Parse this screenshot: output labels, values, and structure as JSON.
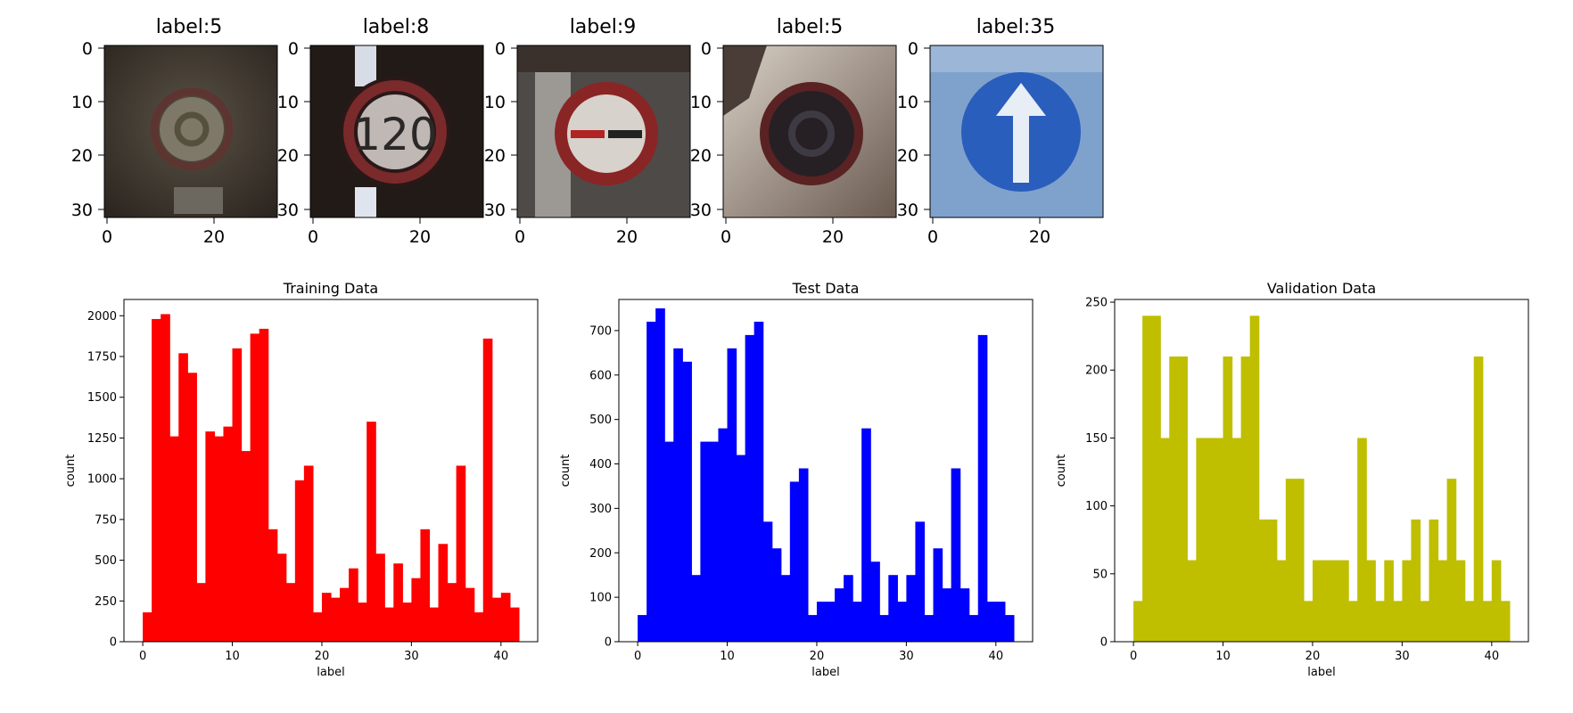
{
  "images": [
    {
      "title": "label:5",
      "icon": "speed-limit-sign-image",
      "xticks": [
        "0",
        "20"
      ],
      "yticks": [
        "0",
        "10",
        "20",
        "30"
      ]
    },
    {
      "title": "label:8",
      "icon": "speed-limit-120-sign-image",
      "sign_text": "120",
      "xticks": [
        "0",
        "20"
      ],
      "yticks": [
        "0",
        "10",
        "20",
        "30"
      ]
    },
    {
      "title": "label:9",
      "icon": "no-passing-sign-image",
      "xticks": [
        "0",
        "20"
      ],
      "yticks": [
        "0",
        "10",
        "20",
        "30"
      ]
    },
    {
      "title": "label:5",
      "icon": "speed-limit-sign-image",
      "xticks": [
        "0",
        "20"
      ],
      "yticks": [
        "0",
        "10",
        "20",
        "30"
      ]
    },
    {
      "title": "label:35",
      "icon": "ahead-only-sign-image",
      "xticks": [
        "0",
        "20"
      ],
      "yticks": [
        "0",
        "10",
        "20",
        "30"
      ]
    }
  ],
  "chart_data": [
    {
      "type": "bar",
      "title": "Training Data",
      "xlabel": "label",
      "ylabel": "count",
      "color": "#ff0000",
      "xlim": [
        -2.1,
        44.1
      ],
      "ylim": [
        0,
        2100
      ],
      "xticks": [
        0,
        10,
        20,
        30,
        40
      ],
      "yticks": [
        0,
        250,
        500,
        750,
        1000,
        1250,
        1500,
        1750,
        2000
      ],
      "bin_width": 1.0,
      "x": [
        0,
        1,
        2,
        3,
        4,
        5,
        6,
        7,
        8,
        9,
        10,
        11,
        12,
        13,
        14,
        15,
        16,
        17,
        18,
        19,
        20,
        21,
        22,
        23,
        24,
        25,
        26,
        27,
        28,
        29,
        30,
        31,
        32,
        33,
        34,
        35,
        36,
        37,
        38,
        39,
        40,
        41
      ],
      "values": [
        180,
        1980,
        2010,
        1260,
        1770,
        1650,
        360,
        1290,
        1260,
        1320,
        1800,
        1170,
        1890,
        1920,
        690,
        540,
        360,
        990,
        1080,
        180,
        300,
        270,
        330,
        450,
        240,
        1350,
        540,
        210,
        480,
        240,
        390,
        690,
        210,
        600,
        360,
        1080,
        330,
        180,
        1860,
        270,
        300,
        210
      ]
    },
    {
      "type": "bar",
      "title": "Test Data",
      "xlabel": "label",
      "ylabel": "count",
      "color": "#0000ff",
      "xlim": [
        -2.1,
        44.1
      ],
      "ylim": [
        0,
        770
      ],
      "xticks": [
        0,
        10,
        20,
        30,
        40
      ],
      "yticks": [
        0,
        100,
        200,
        300,
        400,
        500,
        600,
        700
      ],
      "bin_width": 1.0,
      "x": [
        0,
        1,
        2,
        3,
        4,
        5,
        6,
        7,
        8,
        9,
        10,
        11,
        12,
        13,
        14,
        15,
        16,
        17,
        18,
        19,
        20,
        21,
        22,
        23,
        24,
        25,
        26,
        27,
        28,
        29,
        30,
        31,
        32,
        33,
        34,
        35,
        36,
        37,
        38,
        39,
        40,
        41
      ],
      "values": [
        60,
        720,
        750,
        450,
        660,
        630,
        150,
        450,
        450,
        480,
        660,
        420,
        690,
        720,
        270,
        210,
        150,
        360,
        390,
        60,
        90,
        90,
        120,
        150,
        90,
        480,
        180,
        60,
        150,
        90,
        150,
        270,
        60,
        210,
        120,
        390,
        120,
        60,
        690,
        90,
        90,
        60
      ]
    },
    {
      "type": "bar",
      "title": "Validation Data",
      "xlabel": "label",
      "ylabel": "count",
      "color": "#bfbf00",
      "xlim": [
        -2.1,
        44.1
      ],
      "ylim": [
        0,
        252
      ],
      "xticks": [
        0,
        10,
        20,
        30,
        40
      ],
      "yticks": [
        0,
        50,
        100,
        150,
        200,
        250
      ],
      "bin_width": 1.0,
      "x": [
        0,
        1,
        2,
        3,
        4,
        5,
        6,
        7,
        8,
        9,
        10,
        11,
        12,
        13,
        14,
        15,
        16,
        17,
        18,
        19,
        20,
        21,
        22,
        23,
        24,
        25,
        26,
        27,
        28,
        29,
        30,
        31,
        32,
        33,
        34,
        35,
        36,
        37,
        38,
        39,
        40,
        41
      ],
      "values": [
        30,
        240,
        240,
        150,
        210,
        210,
        60,
        150,
        150,
        150,
        210,
        150,
        210,
        240,
        90,
        90,
        60,
        120,
        120,
        30,
        60,
        60,
        60,
        60,
        30,
        150,
        60,
        30,
        60,
        30,
        60,
        90,
        30,
        90,
        60,
        120,
        60,
        30,
        210,
        30,
        60,
        30
      ]
    }
  ]
}
